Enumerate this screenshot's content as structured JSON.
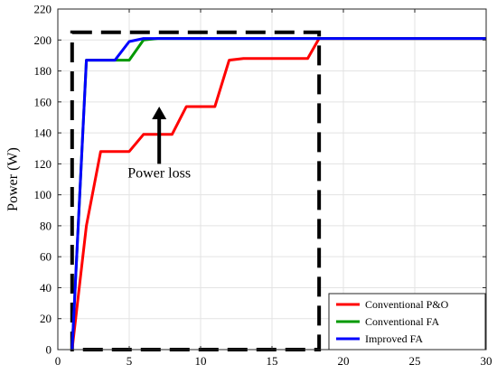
{
  "chart_data": {
    "type": "line",
    "title": "",
    "xlabel": "",
    "ylabel": "Power (W)",
    "xlim": [
      0,
      30
    ],
    "ylim": [
      0,
      220
    ],
    "xticks": [
      0,
      5,
      10,
      15,
      20,
      25,
      30
    ],
    "yticks": [
      0,
      20,
      40,
      60,
      80,
      100,
      120,
      140,
      160,
      180,
      200,
      220
    ],
    "grid": true,
    "legend_position": "bottom-right",
    "series": [
      {
        "name": "Conventional P&O",
        "color": "#ff0000",
        "x": [
          1,
          2,
          3,
          5,
          6,
          8,
          9,
          11,
          12,
          13,
          17.5,
          18.3,
          30
        ],
        "y": [
          0,
          80,
          128,
          128,
          139,
          139,
          157,
          157,
          187,
          188,
          188,
          201,
          201
        ]
      },
      {
        "name": "Conventional FA",
        "color": "#009900",
        "x": [
          1,
          2,
          5,
          6,
          7,
          30
        ],
        "y": [
          0,
          187,
          187,
          200,
          201,
          201
        ]
      },
      {
        "name": "Improved FA",
        "color": "#0000ff",
        "x": [
          1,
          2,
          4,
          5,
          6,
          30
        ],
        "y": [
          0,
          187,
          187,
          199,
          201,
          201
        ]
      }
    ],
    "annotations": [
      {
        "text": "Power loss",
        "x": 7.1,
        "y": 110
      }
    ],
    "highlight_box": {
      "x0": 1,
      "x1": 18.3,
      "y0": 0,
      "y1": 205,
      "style": "dashed black"
    },
    "arrow": {
      "x": 7.1,
      "y_from": 120,
      "y_to": 157,
      "color": "#000000"
    }
  }
}
